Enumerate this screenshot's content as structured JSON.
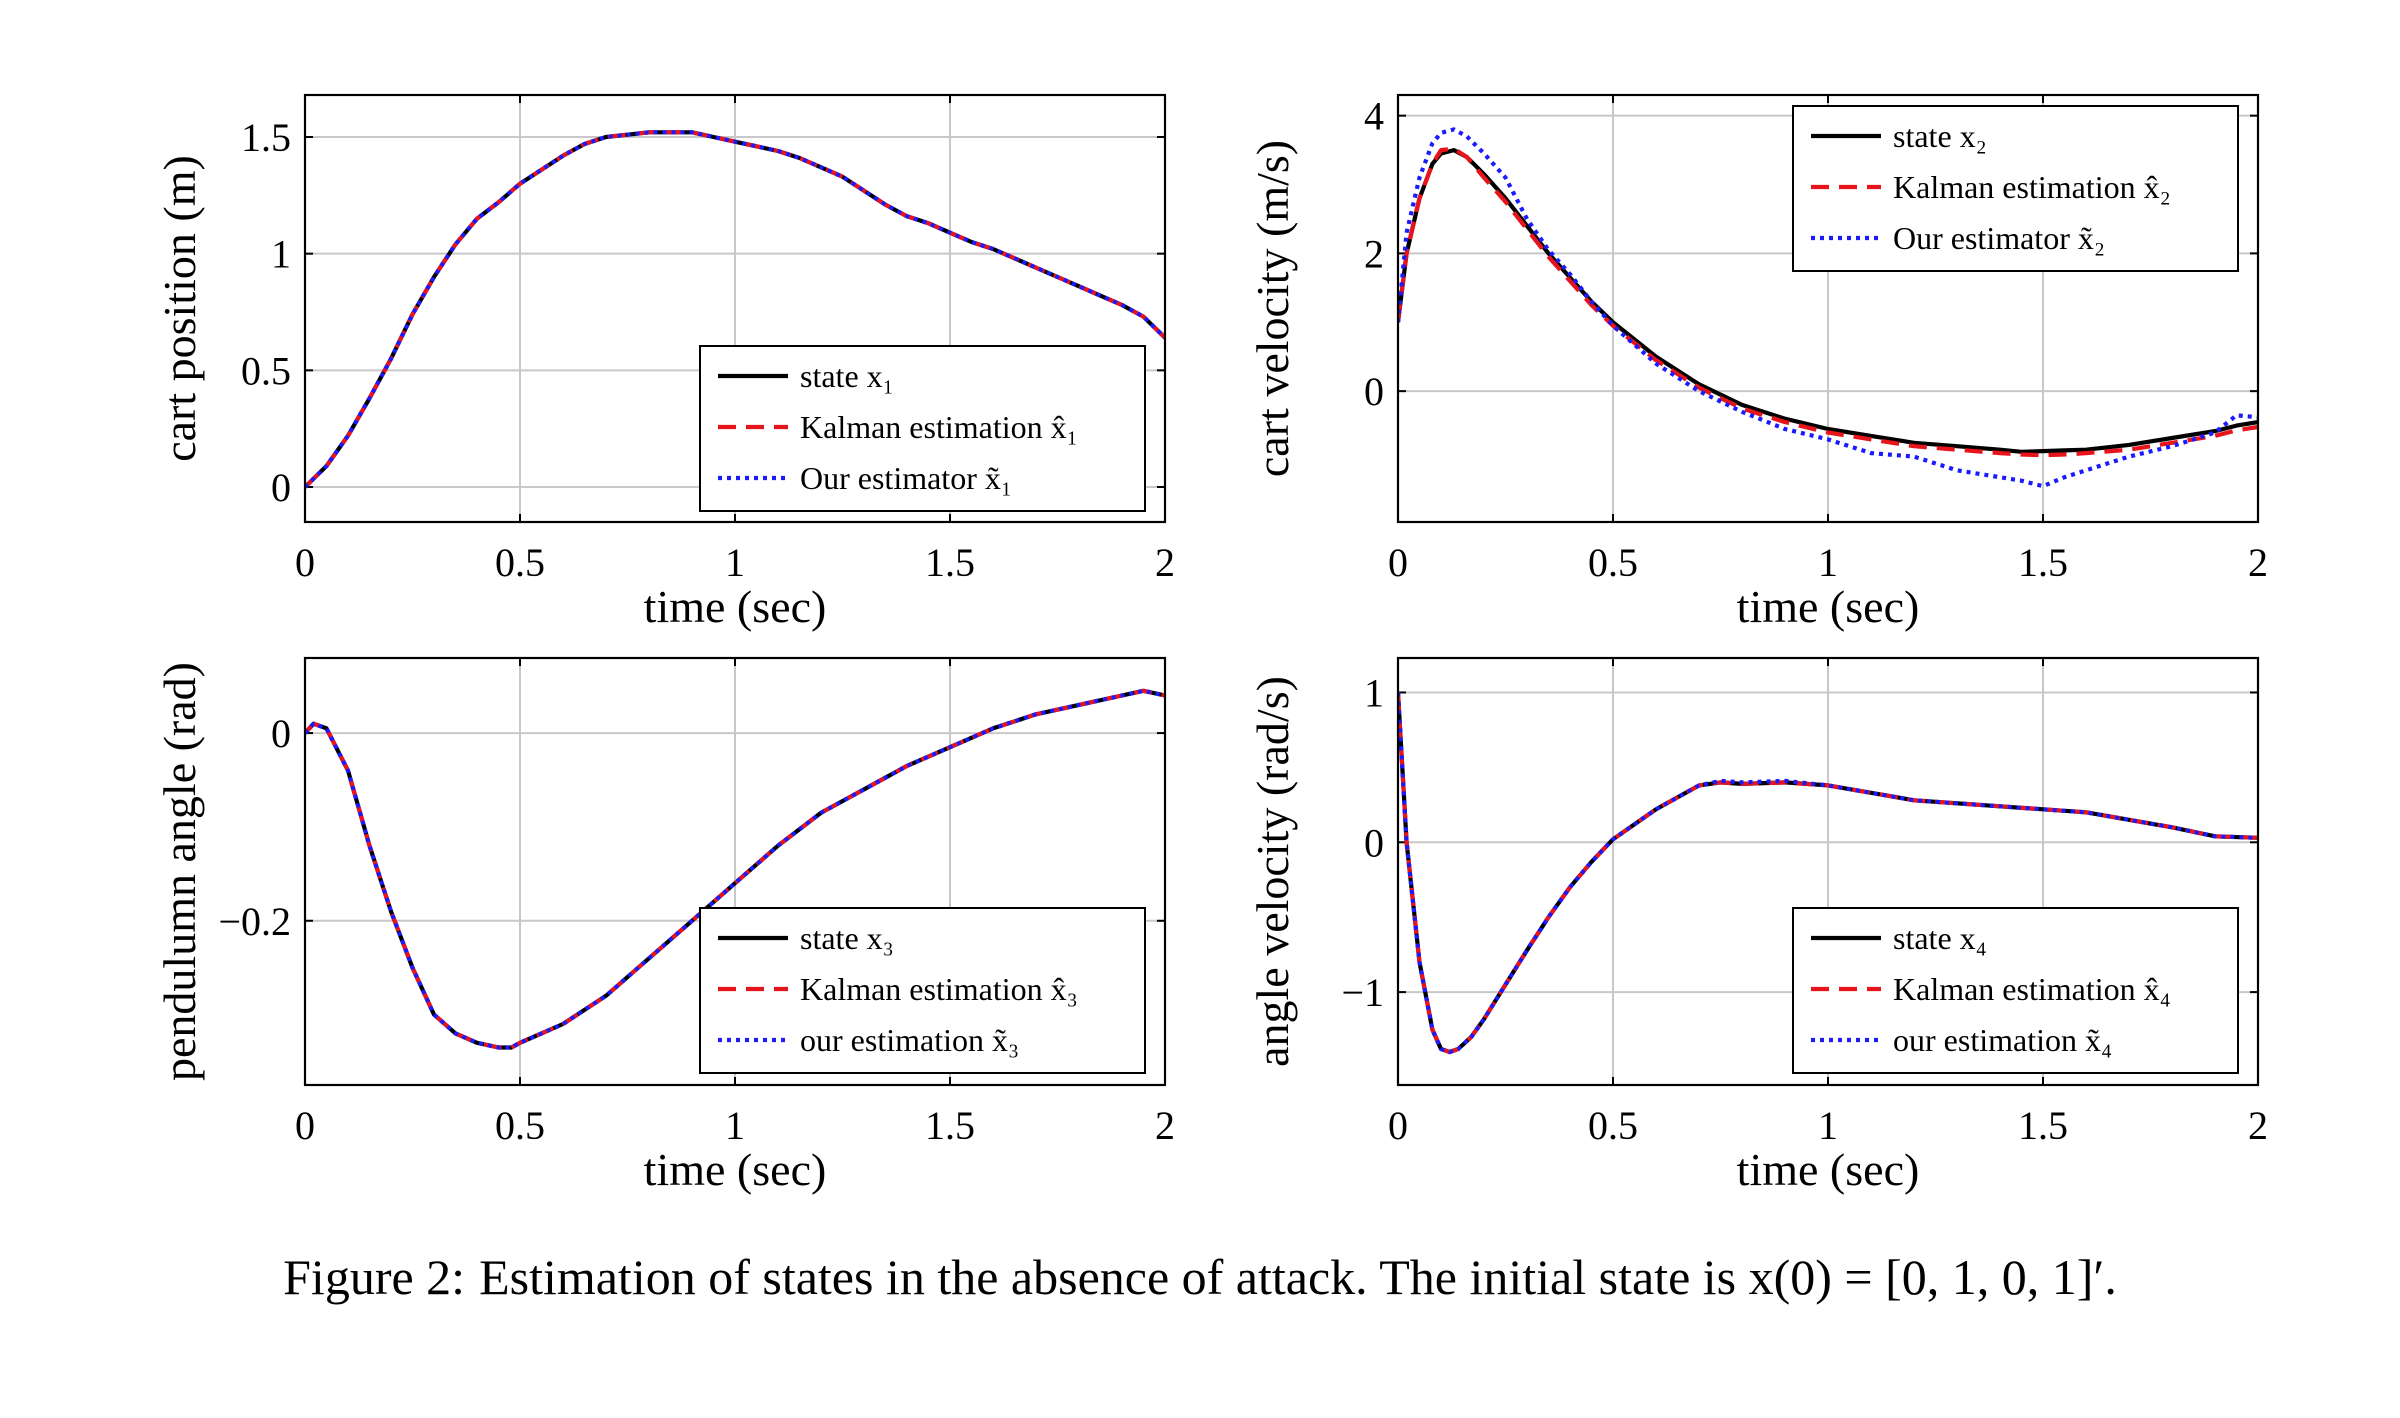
{
  "caption": {
    "label": "Figure 2:",
    "text": "Estimation of states in the absence of attack. The initial state is x(0) = [0, 1, 0, 1]′."
  },
  "colors": {
    "state": "#000000",
    "kalman": "#e8141c",
    "ours": "#1a1aff",
    "grid": "#c8c8c8"
  },
  "chart_data": [
    {
      "type": "line",
      "xlabel": "time (sec)",
      "ylabel": "cart position (m)",
      "xlim": [
        0,
        2
      ],
      "ylim": [
        -0.15,
        1.68
      ],
      "xticks": [
        0,
        0.5,
        1,
        1.5,
        2
      ],
      "xtick_labels": [
        "0",
        "0.5",
        "1",
        "1.5",
        "2"
      ],
      "yticks": [
        0,
        0.5,
        1,
        1.5
      ],
      "ytick_labels": [
        "0",
        "0.5",
        "1",
        "1.5"
      ],
      "grid": true,
      "legend_position": "bottom-right",
      "x": [
        0,
        0.05,
        0.1,
        0.15,
        0.2,
        0.25,
        0.3,
        0.35,
        0.4,
        0.45,
        0.5,
        0.55,
        0.6,
        0.65,
        0.7,
        0.75,
        0.8,
        0.85,
        0.9,
        0.95,
        1.0,
        1.05,
        1.1,
        1.15,
        1.2,
        1.25,
        1.3,
        1.35,
        1.4,
        1.45,
        1.5,
        1.55,
        1.6,
        1.65,
        1.7,
        1.75,
        1.8,
        1.85,
        1.9,
        1.95,
        2.0
      ],
      "series": [
        {
          "name": "state x₁",
          "style": "solid",
          "values": [
            0,
            0.09,
            0.22,
            0.38,
            0.55,
            0.74,
            0.9,
            1.04,
            1.15,
            1.22,
            1.3,
            1.36,
            1.42,
            1.47,
            1.5,
            1.51,
            1.52,
            1.52,
            1.52,
            1.5,
            1.48,
            1.46,
            1.44,
            1.41,
            1.37,
            1.33,
            1.27,
            1.21,
            1.16,
            1.13,
            1.09,
            1.05,
            1.02,
            0.98,
            0.94,
            0.9,
            0.86,
            0.82,
            0.78,
            0.73,
            0.64
          ]
        },
        {
          "name": "Kalman estimation x̂₁",
          "style": "dashed",
          "values": [
            0,
            0.09,
            0.22,
            0.38,
            0.55,
            0.74,
            0.9,
            1.04,
            1.15,
            1.22,
            1.3,
            1.36,
            1.42,
            1.47,
            1.5,
            1.51,
            1.52,
            1.52,
            1.52,
            1.5,
            1.48,
            1.46,
            1.44,
            1.41,
            1.37,
            1.33,
            1.27,
            1.21,
            1.16,
            1.13,
            1.09,
            1.05,
            1.02,
            0.98,
            0.94,
            0.9,
            0.86,
            0.82,
            0.78,
            0.73,
            0.64
          ]
        },
        {
          "name": "Our estimator x̃₁",
          "style": "dotted",
          "values": [
            0,
            0.09,
            0.22,
            0.38,
            0.55,
            0.74,
            0.9,
            1.04,
            1.15,
            1.22,
            1.3,
            1.36,
            1.42,
            1.47,
            1.5,
            1.51,
            1.52,
            1.52,
            1.52,
            1.5,
            1.48,
            1.46,
            1.44,
            1.41,
            1.37,
            1.33,
            1.27,
            1.21,
            1.16,
            1.13,
            1.09,
            1.05,
            1.02,
            0.98,
            0.94,
            0.9,
            0.86,
            0.82,
            0.78,
            0.73,
            0.64
          ]
        }
      ]
    },
    {
      "type": "line",
      "xlabel": "time (sec)",
      "ylabel": "cart velocity (m/s)",
      "xlim": [
        0,
        2
      ],
      "ylim": [
        -1.9,
        4.3
      ],
      "xticks": [
        0,
        0.5,
        1,
        1.5,
        2
      ],
      "xtick_labels": [
        "0",
        "0.5",
        "1",
        "1.5",
        "2"
      ],
      "yticks": [
        0,
        2,
        4
      ],
      "ytick_labels": [
        "0",
        "2",
        "4"
      ],
      "grid": true,
      "legend_position": "top-right",
      "x": [
        0,
        0.02,
        0.05,
        0.08,
        0.1,
        0.13,
        0.16,
        0.2,
        0.25,
        0.3,
        0.35,
        0.4,
        0.45,
        0.5,
        0.6,
        0.7,
        0.8,
        0.9,
        1.0,
        1.1,
        1.2,
        1.3,
        1.4,
        1.45,
        1.5,
        1.55,
        1.6,
        1.7,
        1.8,
        1.9,
        1.95,
        2.0
      ],
      "series": [
        {
          "name": "state x₂",
          "style": "solid",
          "values": [
            1.0,
            2.0,
            2.8,
            3.3,
            3.45,
            3.5,
            3.4,
            3.15,
            2.8,
            2.4,
            2.0,
            1.65,
            1.3,
            1.0,
            0.5,
            0.1,
            -0.2,
            -0.4,
            -0.55,
            -0.65,
            -0.75,
            -0.8,
            -0.85,
            -0.88,
            -0.87,
            -0.86,
            -0.85,
            -0.78,
            -0.68,
            -0.58,
            -0.5,
            -0.45
          ]
        },
        {
          "name": "Kalman estimation x̂₂",
          "style": "dashed",
          "values": [
            1.0,
            2.0,
            2.8,
            3.3,
            3.5,
            3.52,
            3.4,
            3.1,
            2.75,
            2.35,
            1.95,
            1.6,
            1.25,
            0.95,
            0.45,
            0.05,
            -0.25,
            -0.45,
            -0.6,
            -0.7,
            -0.8,
            -0.85,
            -0.9,
            -0.92,
            -0.93,
            -0.92,
            -0.9,
            -0.85,
            -0.75,
            -0.65,
            -0.57,
            -0.52
          ]
        },
        {
          "name": "Our estimator x̃₂",
          "style": "dotted",
          "values": [
            1.0,
            2.3,
            3.1,
            3.6,
            3.75,
            3.8,
            3.7,
            3.45,
            3.1,
            2.5,
            2.05,
            1.7,
            1.3,
            0.95,
            0.4,
            0.0,
            -0.3,
            -0.55,
            -0.7,
            -0.9,
            -0.95,
            -1.15,
            -1.25,
            -1.3,
            -1.38,
            -1.25,
            -1.15,
            -0.95,
            -0.8,
            -0.6,
            -0.35,
            -0.38
          ]
        }
      ]
    },
    {
      "type": "line",
      "xlabel": "time (sec)",
      "ylabel": "pendulumn angle (rad)",
      "xlim": [
        0,
        2
      ],
      "ylim": [
        -0.375,
        0.08
      ],
      "xticks": [
        0,
        0.5,
        1,
        1.5,
        2
      ],
      "xtick_labels": [
        "0",
        "0.5",
        "1",
        "1.5",
        "2"
      ],
      "yticks": [
        0,
        -0.2
      ],
      "ytick_labels": [
        "0",
        "−0.2"
      ],
      "grid": true,
      "legend_position": "bottom-right",
      "x": [
        0,
        0.02,
        0.05,
        0.1,
        0.15,
        0.2,
        0.25,
        0.3,
        0.35,
        0.4,
        0.45,
        0.48,
        0.5,
        0.55,
        0.6,
        0.7,
        0.8,
        0.9,
        1.0,
        1.1,
        1.2,
        1.3,
        1.4,
        1.5,
        1.6,
        1.7,
        1.8,
        1.9,
        1.95,
        2.0
      ],
      "series": [
        {
          "name": "state x₃",
          "style": "solid",
          "values": [
            0,
            0.01,
            0.005,
            -0.04,
            -0.12,
            -0.19,
            -0.25,
            -0.3,
            -0.32,
            -0.33,
            -0.335,
            -0.335,
            -0.33,
            -0.32,
            -0.31,
            -0.28,
            -0.24,
            -0.2,
            -0.16,
            -0.12,
            -0.085,
            -0.06,
            -0.035,
            -0.015,
            0.005,
            0.02,
            0.03,
            0.04,
            0.045,
            0.04
          ]
        },
        {
          "name": "Kalman estimation x̂₃",
          "style": "dashed",
          "values": [
            0,
            0.01,
            0.005,
            -0.04,
            -0.12,
            -0.19,
            -0.25,
            -0.3,
            -0.32,
            -0.33,
            -0.335,
            -0.335,
            -0.33,
            -0.32,
            -0.31,
            -0.28,
            -0.24,
            -0.2,
            -0.16,
            -0.12,
            -0.085,
            -0.06,
            -0.035,
            -0.015,
            0.005,
            0.02,
            0.03,
            0.04,
            0.045,
            0.04
          ]
        },
        {
          "name": "our estimation x̃₃",
          "style": "dotted",
          "values": [
            0,
            0.01,
            0.005,
            -0.04,
            -0.12,
            -0.19,
            -0.25,
            -0.3,
            -0.32,
            -0.33,
            -0.335,
            -0.335,
            -0.33,
            -0.32,
            -0.31,
            -0.28,
            -0.24,
            -0.2,
            -0.16,
            -0.12,
            -0.085,
            -0.06,
            -0.035,
            -0.015,
            0.005,
            0.02,
            0.03,
            0.04,
            0.045,
            0.04
          ]
        }
      ]
    },
    {
      "type": "line",
      "xlabel": "time (sec)",
      "ylabel": "angle velocity (rad/s)",
      "xlim": [
        0,
        2
      ],
      "ylim": [
        -1.62,
        1.23
      ],
      "xticks": [
        0,
        0.5,
        1,
        1.5,
        2
      ],
      "xtick_labels": [
        "0",
        "0.5",
        "1",
        "1.5",
        "2"
      ],
      "yticks": [
        1,
        0,
        -1
      ],
      "ytick_labels": [
        "1",
        "0",
        "−1"
      ],
      "grid": true,
      "legend_position": "bottom-right",
      "x": [
        0,
        0.02,
        0.05,
        0.08,
        0.1,
        0.12,
        0.14,
        0.17,
        0.2,
        0.25,
        0.3,
        0.35,
        0.4,
        0.45,
        0.5,
        0.6,
        0.7,
        0.75,
        0.8,
        0.9,
        1.0,
        1.1,
        1.2,
        1.3,
        1.4,
        1.5,
        1.6,
        1.7,
        1.8,
        1.9,
        2.0
      ],
      "series": [
        {
          "name": "state x₄",
          "style": "solid",
          "values": [
            1.0,
            0.0,
            -0.8,
            -1.25,
            -1.38,
            -1.4,
            -1.38,
            -1.3,
            -1.18,
            -0.95,
            -0.72,
            -0.5,
            -0.3,
            -0.13,
            0.02,
            0.22,
            0.38,
            0.4,
            0.39,
            0.4,
            0.38,
            0.33,
            0.28,
            0.26,
            0.24,
            0.22,
            0.2,
            0.15,
            0.1,
            0.04,
            0.03
          ]
        },
        {
          "name": "Kalman estimation x̂₄",
          "style": "dashed",
          "values": [
            1.0,
            0.0,
            -0.8,
            -1.25,
            -1.38,
            -1.4,
            -1.38,
            -1.3,
            -1.18,
            -0.95,
            -0.72,
            -0.5,
            -0.3,
            -0.13,
            0.02,
            0.22,
            0.38,
            0.4,
            0.39,
            0.4,
            0.38,
            0.33,
            0.28,
            0.26,
            0.24,
            0.22,
            0.2,
            0.15,
            0.1,
            0.04,
            0.03
          ]
        },
        {
          "name": "our estimation x̃₄",
          "style": "dotted",
          "values": [
            1.0,
            0.0,
            -0.8,
            -1.25,
            -1.38,
            -1.4,
            -1.38,
            -1.3,
            -1.18,
            -0.95,
            -0.72,
            -0.5,
            -0.3,
            -0.13,
            0.02,
            0.22,
            0.38,
            0.41,
            0.4,
            0.41,
            0.38,
            0.33,
            0.28,
            0.26,
            0.24,
            0.22,
            0.2,
            0.15,
            0.1,
            0.04,
            0.03
          ]
        }
      ]
    }
  ]
}
